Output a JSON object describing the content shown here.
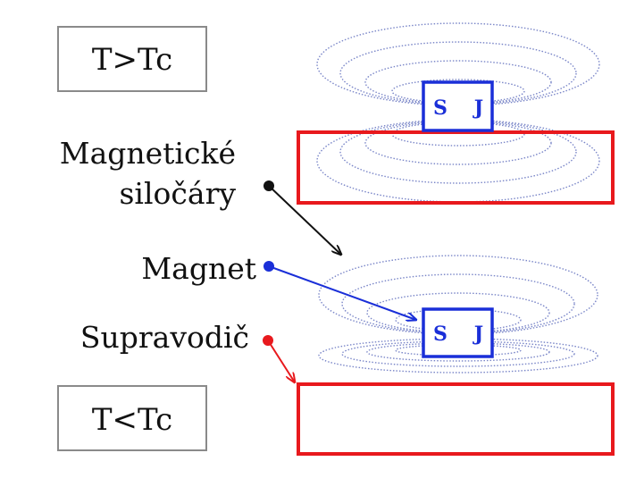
{
  "labels": {
    "top_state": "T>Tc",
    "bottom_state": "T<Tc",
    "field_lines_1": "Magnetické",
    "field_lines_2": "siločáry",
    "magnet": "Magnet",
    "superconductor": "Supravodič"
  },
  "magnet_poles": {
    "south": "S",
    "north": "J"
  },
  "colors": {
    "field_lines": "#7a86c8",
    "magnet": "#1a2fd8",
    "superconductor": "#e8191d",
    "label_box_border": "#8a8a8a",
    "pointer_field_lines": "#111111",
    "pointer_magnet": "#1a2fd8",
    "pointer_superconductor": "#e8191d"
  }
}
